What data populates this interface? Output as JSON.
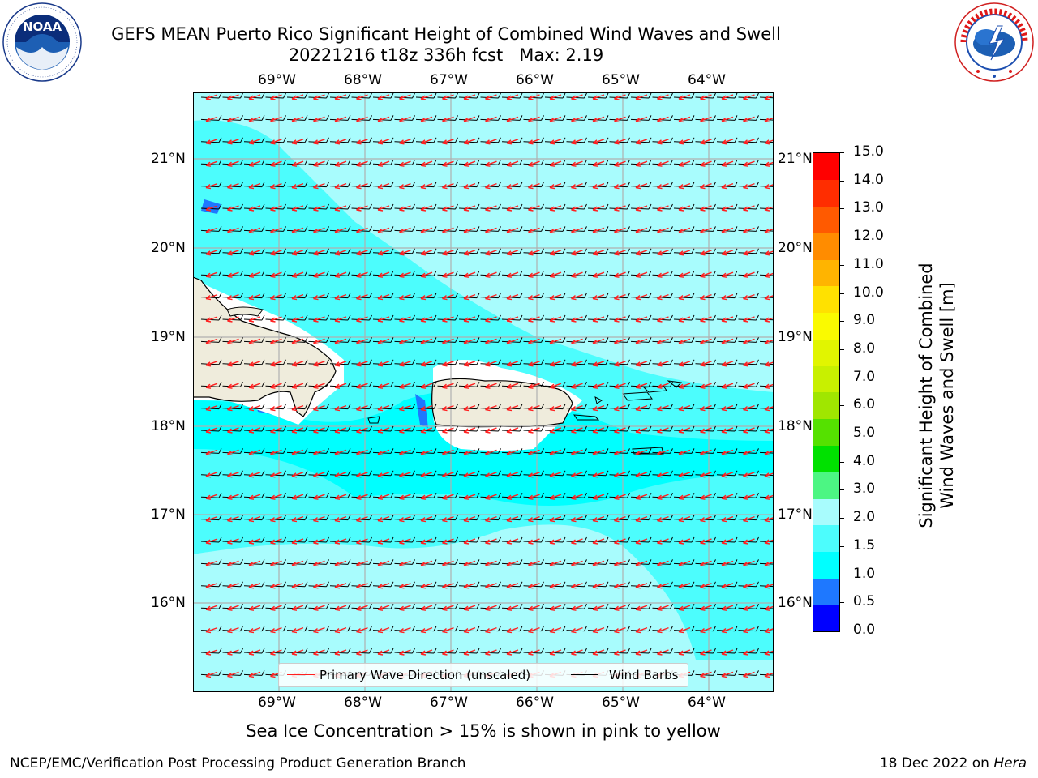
{
  "header": {
    "title": "GEFS MEAN Puerto Rico Significant Height of Combined Wind Waves and Swell",
    "run": "20221216 t18z 336h fcst",
    "max": "Max: 2.19"
  },
  "logos": {
    "left": {
      "name": "NOAA",
      "ring_text": "NATIONAL OCEANIC AND ATMOSPHERIC ADMINISTRATION · U.S. DEPARTMENT OF COMMERCE"
    },
    "right": {
      "ring_text": "NATIONAL WEATHER SERVICE"
    }
  },
  "map": {
    "lon_labels": [
      "69°W",
      "68°W",
      "67°W",
      "66°W",
      "65°W",
      "64°W"
    ],
    "lat_labels": [
      "21°N",
      "20°N",
      "19°N",
      "18°N",
      "17°N",
      "16°N"
    ],
    "background_color": "#a8fcfd",
    "wave_arrow_color": "#ff2020",
    "barb_color": "#000000",
    "land_color": "#efecdc"
  },
  "legend": {
    "wave": "Primary Wave Direction (unscaled)",
    "barb": "Wind Barbs"
  },
  "colorbar": {
    "title_line1": "Significant Height of Combined",
    "title_line2": "Wind Waves and Swell [m]",
    "ticks": [
      "15.0",
      "14.0",
      "13.0",
      "12.0",
      "11.0",
      "10.0",
      "9.0",
      "8.0",
      "7.0",
      "6.0",
      "5.0",
      "4.0",
      "3.0",
      "2.0",
      "1.5",
      "1.0",
      "0.5",
      "0.0"
    ],
    "colors": [
      "#0000ff",
      "#1e78ff",
      "#00ffff",
      "#4cfdfd",
      "#a8fcfd",
      "#4cf683",
      "#00e100",
      "#55e100",
      "#a0e600",
      "#c8f000",
      "#e1f500",
      "#fafa00",
      "#ffe100",
      "#ffb400",
      "#ff8c00",
      "#ff5a00",
      "#ff2d00",
      "#ff0000"
    ]
  },
  "caption": "Sea Ice Concentration > 15% is shown in pink to yellow",
  "footer": {
    "left": "NCEP/EMC/Verification Post Processing Product Generation Branch",
    "right_date": "18 Dec 2022 on",
    "right_host": "Hera"
  }
}
